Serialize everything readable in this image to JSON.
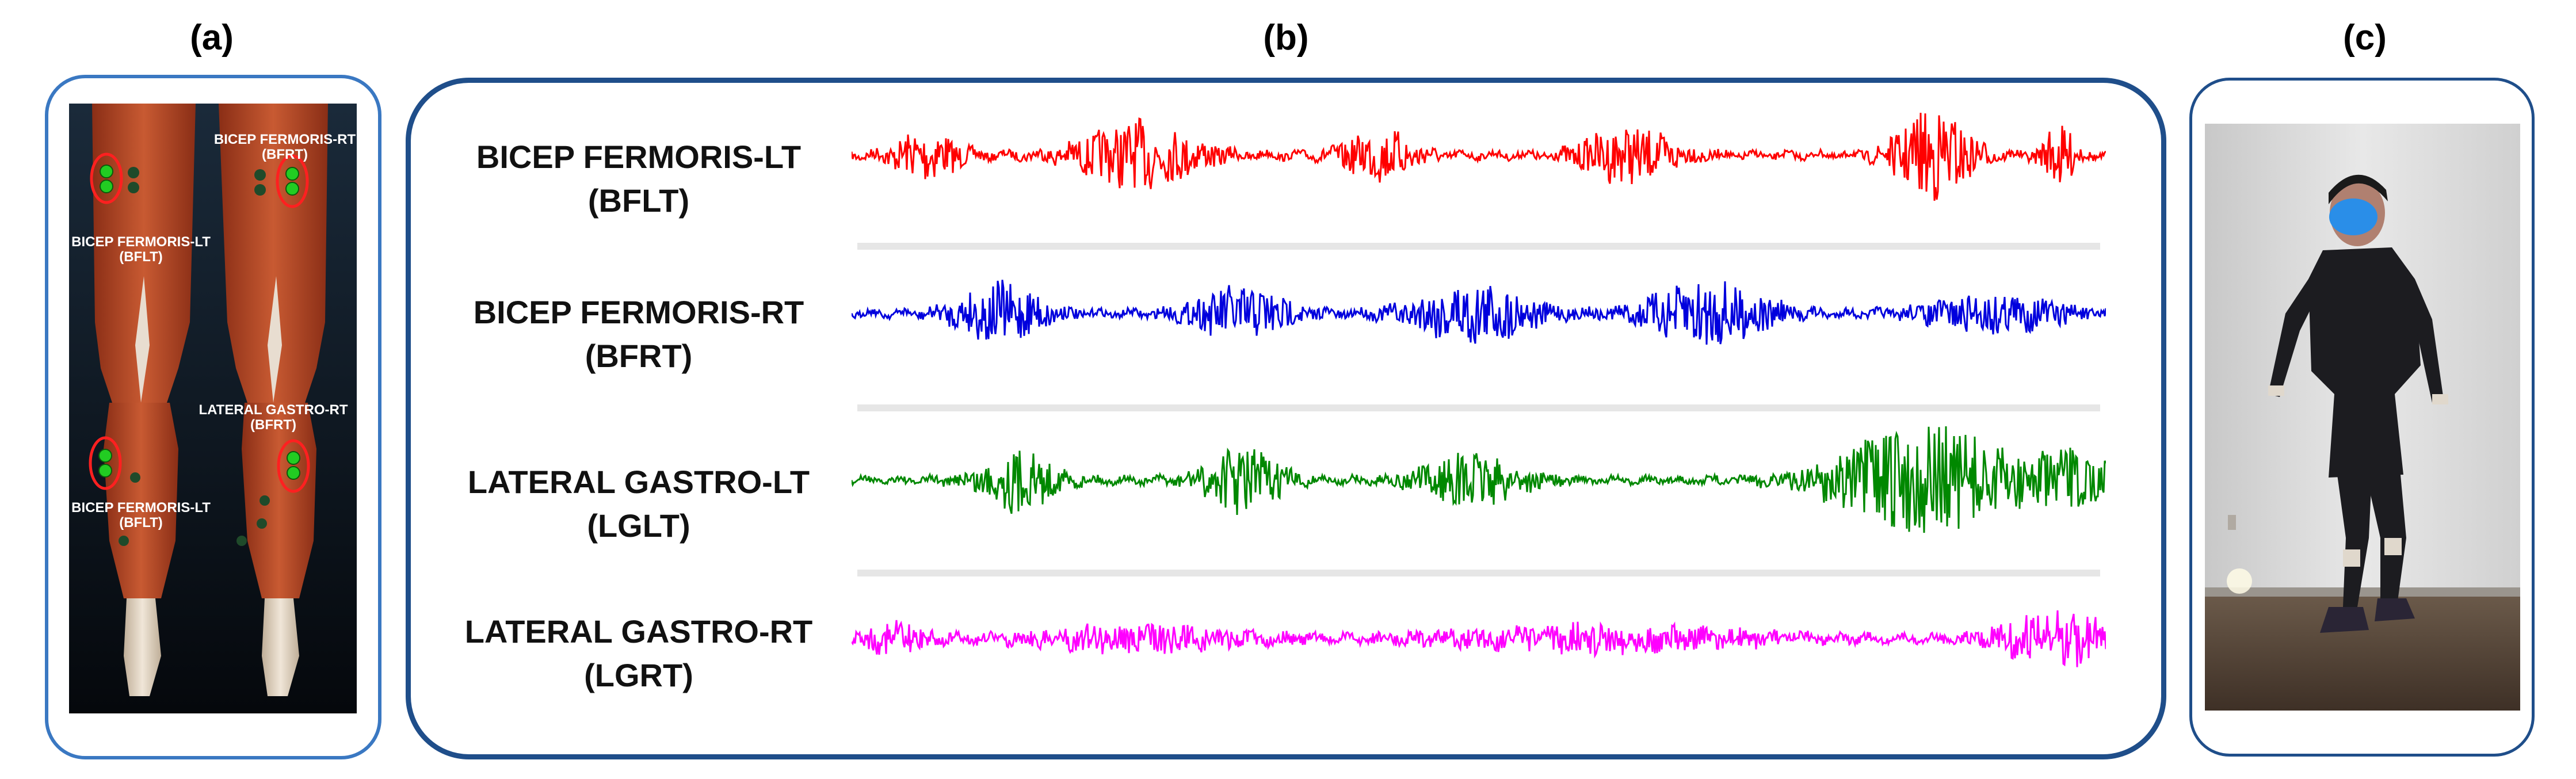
{
  "panels": {
    "a_label": "(a)",
    "b_label": "(b)",
    "c_label": "(c)"
  },
  "anatomy": {
    "labels": [
      {
        "name": "BICEP FERMORIS-RT",
        "abbr": "(BFRT)"
      },
      {
        "name": "BICEP FERMORIS-LT",
        "abbr": "(BFLT)"
      },
      {
        "name": "LATERAL GASTRO-RT",
        "abbr": "(BFRT)"
      },
      {
        "name": "BICEP FERMORIS-LT",
        "abbr": "(BFLT)"
      }
    ]
  },
  "signals": [
    {
      "name": "BICEP FERMORIS-LT",
      "abbr": "(BFLT)",
      "color": "#ff0000"
    },
    {
      "name": "BICEP FERMORIS-RT",
      "abbr": "(BFRT)",
      "color": "#0000dd"
    },
    {
      "name": "LATERAL GASTRO-LT",
      "abbr": "(LGLT)",
      "color": "#008800"
    },
    {
      "name": "LATERAL GASTRO-RT",
      "abbr": "(LGRT)",
      "color": "#ff00ff"
    }
  ],
  "colors": {
    "frame": "#3a78c2",
    "frame_dark": "#1f4e8a",
    "electrode": "#22cc22",
    "marker": "#ff2020",
    "face_mask": "#2a8ee8"
  }
}
